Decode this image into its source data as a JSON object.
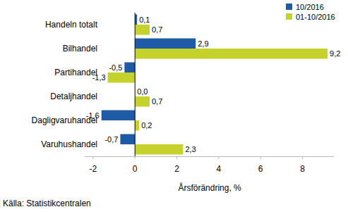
{
  "chart_data": {
    "type": "bar",
    "orientation": "horizontal",
    "categories": [
      "Handeln totalt",
      "Bilhandel",
      "Partihandel",
      "Detaljhandel",
      "Dagligvaruhandel",
      "Varuhushandel"
    ],
    "series": [
      {
        "name": "10/2016",
        "color": "#1f5aa6",
        "values": [
          0.1,
          2.9,
          -0.5,
          0.0,
          -1.6,
          -0.7
        ],
        "value_labels": [
          "0,1",
          "2,9",
          "-0,5",
          "0,0",
          "-1,6",
          "-0,7"
        ]
      },
      {
        "name": "01-10/2016",
        "color": "#c5d22c",
        "values": [
          0.7,
          9.2,
          -1.3,
          0.7,
          0.2,
          2.3
        ],
        "value_labels": [
          "0,7",
          "9,2",
          "-1,3",
          "0,7",
          "0,2",
          "2,3"
        ]
      }
    ],
    "x_label": "Årsförändring, %",
    "source": "Källa: Statistikcentralen",
    "xlim": [
      -2.4,
      9.5
    ],
    "xticks": [
      -2,
      0,
      2,
      4,
      6,
      8
    ],
    "grid": false,
    "legend": "top-right",
    "data_labels": true
  }
}
